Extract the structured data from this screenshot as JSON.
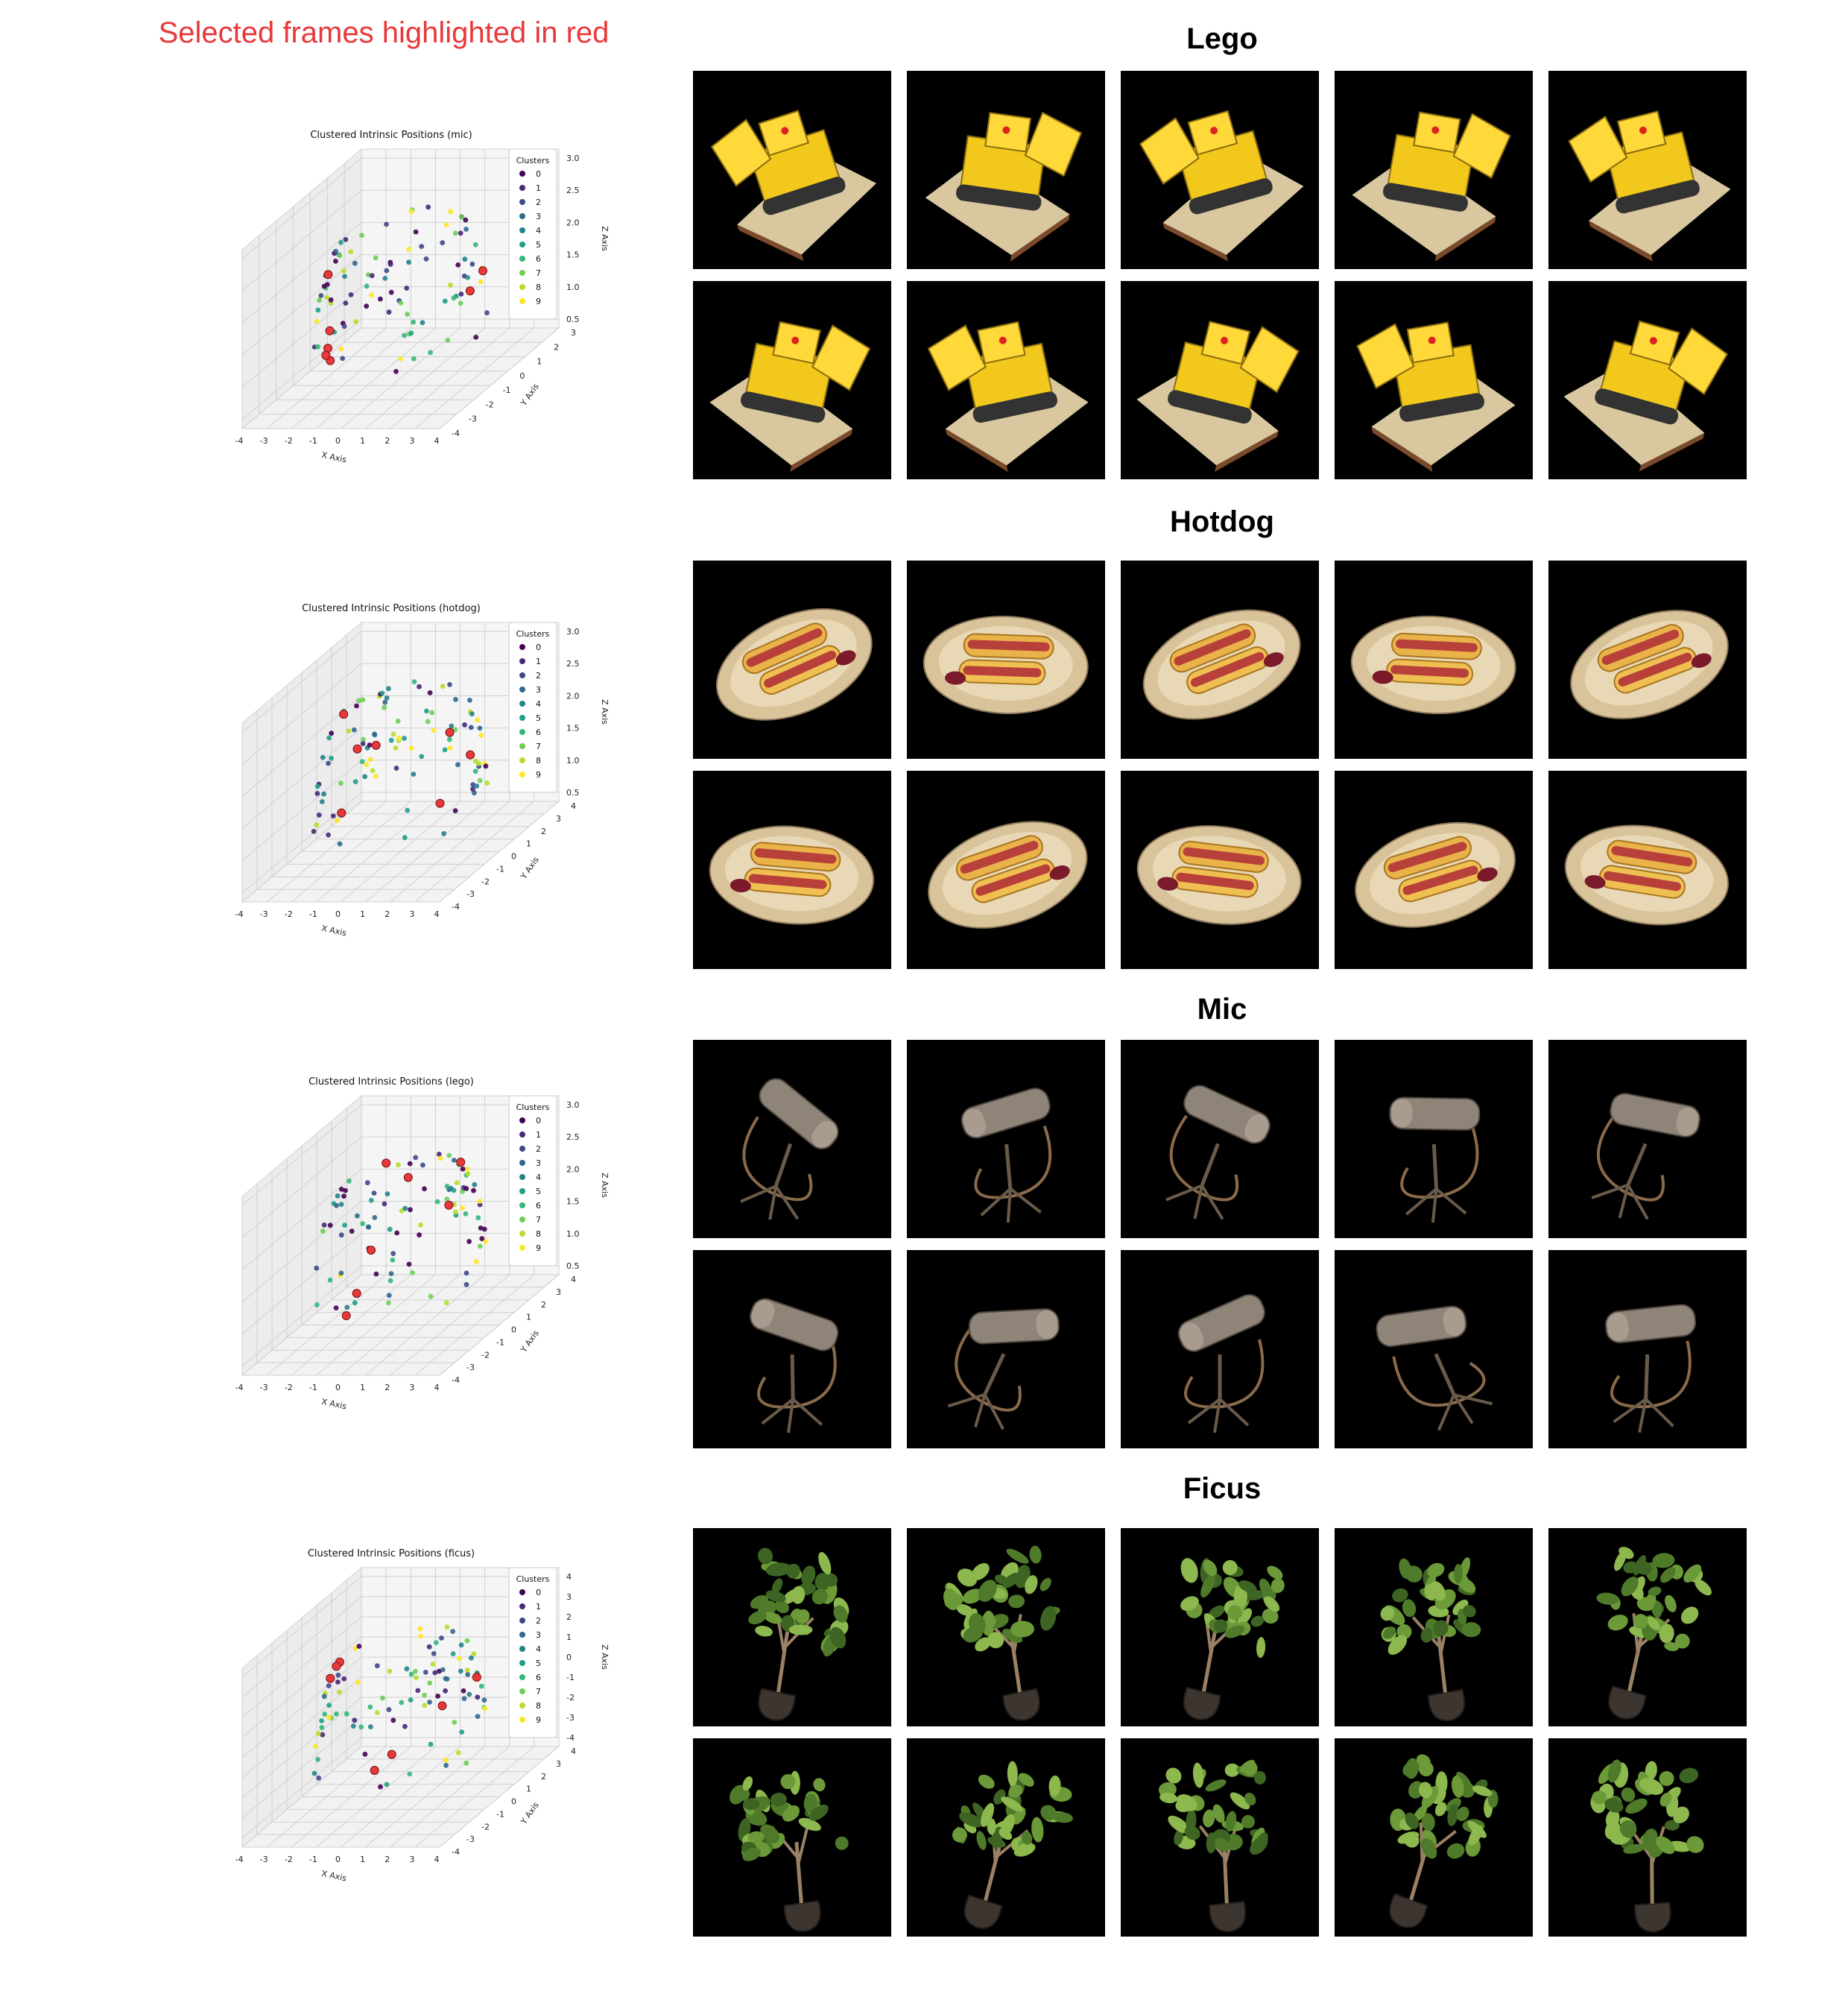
{
  "header": {
    "title": "Selected frames highlighted in red"
  },
  "legend_title": "Clusters",
  "legend_labels": [
    "0",
    "1",
    "2",
    "3",
    "4",
    "5",
    "6",
    "7",
    "8",
    "9"
  ],
  "cluster_colors": [
    "#440154",
    "#482878",
    "#3e4989",
    "#31688e",
    "#26828e",
    "#1f9e89",
    "#35b779",
    "#6ece58",
    "#b5de2b",
    "#fde725"
  ],
  "highlight_color": "#e8383a",
  "chart_data": [
    {
      "type": "scatter",
      "title": "Clustered Intrinsic Positions (mic)",
      "xlabel": "X Axis",
      "ylabel": "Y Axis",
      "zlabel": "Z Axis",
      "x_ticks": [
        "-4",
        "-3",
        "-2",
        "-1",
        "0",
        "1",
        "2",
        "3",
        "4"
      ],
      "y_ticks": [
        "-4",
        "-3",
        "-2",
        "-1",
        "0",
        "1",
        "2",
        "3"
      ],
      "z_ticks": [
        "0.5",
        "1.0",
        "1.5",
        "2.0",
        "2.5",
        "3.0"
      ],
      "xlim": [
        -4,
        4
      ],
      "ylim": [
        -4,
        3
      ],
      "zlim": [
        0,
        3.2
      ],
      "legend": "top-right",
      "grid": true
    },
    {
      "type": "scatter",
      "title": "Clustered Intrinsic Positions (hotdog)",
      "xlabel": "X Axis",
      "ylabel": "Y Axis",
      "zlabel": "Z Axis",
      "x_ticks": [
        "-4",
        "-3",
        "-2",
        "-1",
        "0",
        "1",
        "2",
        "3",
        "4"
      ],
      "y_ticks": [
        "-4",
        "-3",
        "-2",
        "-1",
        "0",
        "1",
        "2",
        "3",
        "4"
      ],
      "z_ticks": [
        "0.5",
        "1.0",
        "1.5",
        "2.0",
        "2.5",
        "3.0"
      ],
      "xlim": [
        -4,
        4
      ],
      "ylim": [
        -4,
        4
      ],
      "zlim": [
        0,
        3.2
      ],
      "legend": "top-right",
      "grid": true
    },
    {
      "type": "scatter",
      "title": "Clustered Intrinsic Positions (lego)",
      "xlabel": "X Axis",
      "ylabel": "Y Axis",
      "zlabel": "Z Axis",
      "x_ticks": [
        "-4",
        "-3",
        "-2",
        "-1",
        "0",
        "1",
        "2",
        "3",
        "4"
      ],
      "y_ticks": [
        "-4",
        "-3",
        "-2",
        "-1",
        "0",
        "1",
        "2",
        "3",
        "4"
      ],
      "z_ticks": [
        "0.5",
        "1.0",
        "1.5",
        "2.0",
        "2.5",
        "3.0"
      ],
      "xlim": [
        -4,
        4
      ],
      "ylim": [
        -4,
        4
      ],
      "zlim": [
        0,
        3.2
      ],
      "legend": "top-right",
      "grid": true
    },
    {
      "type": "scatter",
      "title": "Clustered Intrinsic Positions (ficus)",
      "xlabel": "X Axis",
      "ylabel": "Y Axis",
      "zlabel": "Z Axis",
      "x_ticks": [
        "-4",
        "-3",
        "-2",
        "-1",
        "0",
        "1",
        "2",
        "3",
        "4"
      ],
      "y_ticks": [
        "-4",
        "-3",
        "-2",
        "-1",
        "0",
        "1",
        "2",
        "3",
        "4"
      ],
      "z_ticks": [
        "-4",
        "-3",
        "-2",
        "-1",
        "0",
        "1",
        "2",
        "3",
        "4"
      ],
      "xlim": [
        -4,
        4
      ],
      "ylim": [
        -4,
        4
      ],
      "zlim": [
        -4,
        4
      ],
      "legend": "top-right",
      "grid": true
    }
  ],
  "scenes": [
    {
      "title": "Lego",
      "kind": "lego",
      "count": 10
    },
    {
      "title": "Hotdog",
      "kind": "hotdog",
      "count": 10
    },
    {
      "title": "Mic",
      "kind": "mic",
      "count": 10
    },
    {
      "title": "Ficus",
      "kind": "ficus",
      "count": 10
    }
  ]
}
